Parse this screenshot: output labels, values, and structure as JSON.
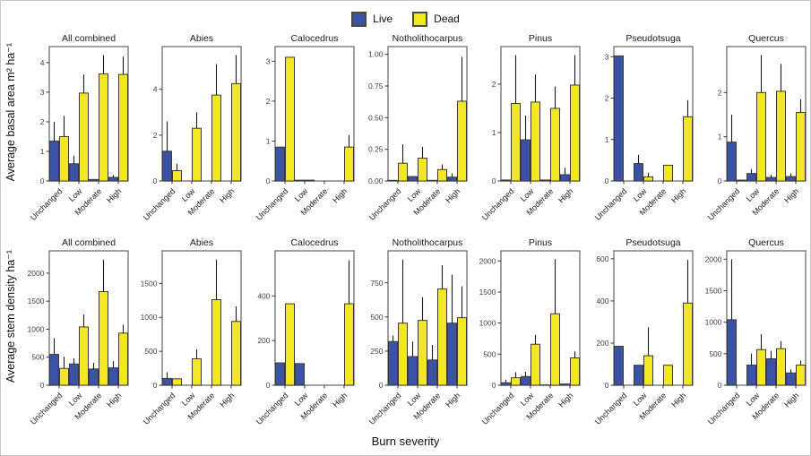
{
  "legend": {
    "items": [
      {
        "label": "Live",
        "color": "#3A53A4"
      },
      {
        "label": "Dead",
        "color": "#F2E822"
      }
    ]
  },
  "chart_data": {
    "type": "bar",
    "categories": [
      "Unchanged",
      "Low",
      "Moderate",
      "High"
    ],
    "series_names": [
      "Live",
      "Dead"
    ],
    "colors": {
      "live": "#3A53A4",
      "dead": "#F2E822",
      "bar_border": "#3C3C34",
      "panel_border": "#6E6E6E",
      "error": "#1A1A1A",
      "tick": "#333333",
      "tick_label": "#404040",
      "title": "#1A1A1A"
    },
    "xlabel": "Burn severity",
    "rows": [
      {
        "ylabel": "Average basal area  m² ha⁻¹",
        "panels": [
          {
            "title": "All combined",
            "yticks": [
              0,
              1,
              2,
              3,
              4
            ],
            "ytick_labels": [
              "0",
              "1",
              "2",
              "3",
              "4"
            ],
            "ymax": 4.45,
            "series": [
              {
                "name": "Live",
                "values": [
                  1.35,
                  0.58,
                  0.05,
                  0.12
                ],
                "upper": [
                  2.0,
                  0.85,
                  0.05,
                  0.2
                ]
              },
              {
                "name": "Dead",
                "values": [
                  1.5,
                  2.97,
                  3.62,
                  3.6
                ],
                "upper": [
                  2.2,
                  3.6,
                  4.25,
                  4.2
                ]
              }
            ]
          },
          {
            "title": "Abies",
            "yticks": [
              0,
              2,
              4
            ],
            "ytick_labels": [
              "0",
              "2",
              "4"
            ],
            "ymax": 5.75,
            "series": [
              {
                "name": "Live",
                "values": [
                  1.3,
                  0,
                  0,
                  0
                ],
                "upper": [
                  2.6,
                  0,
                  0,
                  0
                ]
              },
              {
                "name": "Dead",
                "values": [
                  0.45,
                  2.3,
                  3.75,
                  4.25
                ],
                "upper": [
                  0.75,
                  3.0,
                  5.1,
                  5.5
                ]
              }
            ]
          },
          {
            "title": "Calocedrus",
            "yticks": [
              0,
              1,
              2,
              3
            ],
            "ytick_labels": [
              "0",
              "1",
              "2",
              "3"
            ],
            "ymax": 3.3,
            "series": [
              {
                "name": "Live",
                "values": [
                  0.85,
                  0.02,
                  0,
                  0
                ],
                "upper": [
                  0.85,
                  0.02,
                  0,
                  0
                ]
              },
              {
                "name": "Dead",
                "values": [
                  3.1,
                  0.02,
                  0,
                  0.85
                ],
                "upper": [
                  3.1,
                  0.02,
                  0,
                  1.15
                ]
              }
            ]
          },
          {
            "title": "Notholithocarpus",
            "yticks": [
              0,
              0.25,
              0.5,
              0.75,
              1
            ],
            "ytick_labels": [
              "0.00",
              "0.25",
              "0.50",
              "0.75",
              "1.00"
            ],
            "ymax": 1.04,
            "series": [
              {
                "name": "Live",
                "values": [
                  0.005,
                  0.035,
                  0.005,
                  0.03
                ],
                "upper": [
                  0.005,
                  0.035,
                  0.005,
                  0.06
                ]
              },
              {
                "name": "Dead",
                "values": [
                  0.14,
                  0.18,
                  0.09,
                  0.63
                ],
                "upper": [
                  0.29,
                  0.27,
                  0.13,
                  0.98
                ]
              }
            ]
          },
          {
            "title": "Pinus",
            "yticks": [
              0,
              1,
              2
            ],
            "ytick_labels": [
              "0",
              "1",
              "2"
            ],
            "ymax": 2.72,
            "series": [
              {
                "name": "Live",
                "values": [
                  0.02,
                  0.85,
                  0.02,
                  0.13
                ],
                "upper": [
                  0.02,
                  1.35,
                  0.02,
                  0.27
                ]
              },
              {
                "name": "Dead",
                "values": [
                  1.6,
                  1.63,
                  1.5,
                  1.98
                ],
                "upper": [
                  2.6,
                  2.2,
                  1.95,
                  2.6
                ]
              }
            ]
          },
          {
            "title": "Pseudotsuga",
            "yticks": [
              0,
              1,
              2,
              3
            ],
            "ytick_labels": [
              "0",
              "1",
              "2",
              "3"
            ],
            "ymax": 3.18,
            "series": [
              {
                "name": "Live",
                "values": [
                  3.02,
                  0.42,
                  0,
                  0
                ],
                "upper": [
                  3.02,
                  0.63,
                  0,
                  0
                ]
              },
              {
                "name": "Dead",
                "values": [
                  0,
                  0.1,
                  0.38,
                  1.55
                ],
                "upper": [
                  0,
                  0.2,
                  0.38,
                  1.95
                ]
              }
            ]
          },
          {
            "title": "Quercus",
            "yticks": [
              0,
              1,
              2
            ],
            "ytick_labels": [
              "0",
              "1",
              "2"
            ],
            "ymax": 2.98,
            "series": [
              {
                "name": "Live",
                "values": [
                  0.88,
                  0.17,
                  0.08,
                  0.1
                ],
                "upper": [
                  1.5,
                  0.27,
                  0.14,
                  0.17
                ]
              },
              {
                "name": "Dead",
                "values": [
                  0.02,
                  2.0,
                  2.03,
                  1.55
                ],
                "upper": [
                  0.02,
                  2.85,
                  2.65,
                  1.85
                ]
              }
            ]
          }
        ]
      },
      {
        "ylabel": "Average stem density ha⁻¹",
        "panels": [
          {
            "title": "All combined",
            "yticks": [
              0,
              500,
              1000,
              1500,
              2000
            ],
            "ytick_labels": [
              "0",
              "500",
              "1000",
              "1500",
              "2000"
            ],
            "ymax": 2350,
            "series": [
              {
                "name": "Live",
                "values": [
                  550,
                  380,
                  290,
                  310
                ],
                "upper": [
                  840,
                  480,
                  400,
                  430
                ]
              },
              {
                "name": "Dead",
                "values": [
                  300,
                  1040,
                  1670,
                  930
                ],
                "upper": [
                  510,
                  1260,
                  2240,
                  1080
                ]
              }
            ]
          },
          {
            "title": "Abies",
            "yticks": [
              0,
              500,
              1000,
              1500
            ],
            "ytick_labels": [
              "0",
              "500",
              "1000",
              "1500"
            ],
            "ymax": 1940,
            "series": [
              {
                "name": "Live",
                "values": [
                  100,
                  0,
                  0,
                  0
                ],
                "upper": [
                  190,
                  0,
                  0,
                  0
                ]
              },
              {
                "name": "Dead",
                "values": [
                  95,
                  390,
                  1260,
                  940
                ],
                "upper": [
                  95,
                  530,
                  1850,
                  1160
                ]
              }
            ]
          },
          {
            "title": "Calocedrus",
            "yticks": [
              0,
              200,
              400
            ],
            "ytick_labels": [
              "0",
              "200",
              "400"
            ],
            "ymax": 590,
            "series": [
              {
                "name": "Live",
                "values": [
                  100,
                  97,
                  0,
                  0
                ],
                "upper": [
                  100,
                  97,
                  0,
                  0
                ]
              },
              {
                "name": "Dead",
                "values": [
                  365,
                  0,
                  0,
                  365
                ],
                "upper": [
                  365,
                  0,
                  0,
                  560
                ]
              }
            ]
          },
          {
            "title": "Notholithocarpus",
            "yticks": [
              0,
              250,
              500,
              750
            ],
            "ytick_labels": [
              "0",
              "250",
              "500",
              "750"
            ],
            "ymax": 965,
            "series": [
              {
                "name": "Live",
                "values": [
                  320,
                  210,
                  185,
                  455
                ],
                "upper": [
                  365,
                  320,
                  295,
                  810
                ]
              },
              {
                "name": "Dead",
                "values": [
                  455,
                  475,
                  705,
                  495
                ],
                "upper": [
                  920,
                  645,
                  880,
                  725
                ]
              }
            ]
          },
          {
            "title": "Pinus",
            "yticks": [
              0,
              500,
              1000,
              1500,
              2000
            ],
            "ytick_labels": [
              "0",
              "500",
              "1000",
              "1500",
              "2000"
            ],
            "ymax": 2120,
            "series": [
              {
                "name": "Live",
                "values": [
                  40,
                  140,
                  5,
                  20
                ],
                "upper": [
                  90,
                  215,
                  5,
                  20
                ]
              },
              {
                "name": "Dead",
                "values": [
                  120,
                  660,
                  1150,
                  440
                ],
                "upper": [
                  210,
                  810,
                  2030,
                  545
                ]
              }
            ]
          },
          {
            "title": "Pseudotsuga",
            "yticks": [
              0,
              200,
              400,
              600
            ],
            "ytick_labels": [
              "0",
              "200",
              "400",
              "600"
            ],
            "ymax": 625,
            "series": [
              {
                "name": "Live",
                "values": [
                  185,
                  95,
                  0,
                  0
                ],
                "upper": [
                  185,
                  95,
                  0,
                  0
                ]
              },
              {
                "name": "Dead",
                "values": [
                  0,
                  140,
                  95,
                  390
                ],
                "upper": [
                  0,
                  275,
                  95,
                  595
                ]
              }
            ]
          },
          {
            "title": "Quercus",
            "yticks": [
              0,
              500,
              1000,
              1500,
              2000
            ],
            "ytick_labels": [
              "0",
              "500",
              "1000",
              "1500",
              "2000"
            ],
            "ymax": 2090,
            "series": [
              {
                "name": "Live",
                "values": [
                  1040,
                  320,
                  420,
                  195
                ],
                "upper": [
                  2000,
                  500,
                  545,
                  250
                ]
              },
              {
                "name": "Dead",
                "values": [
                  0,
                  565,
                  580,
                  320
                ],
                "upper": [
                  0,
                  810,
                  700,
                  390
                ]
              }
            ]
          }
        ]
      }
    ]
  }
}
